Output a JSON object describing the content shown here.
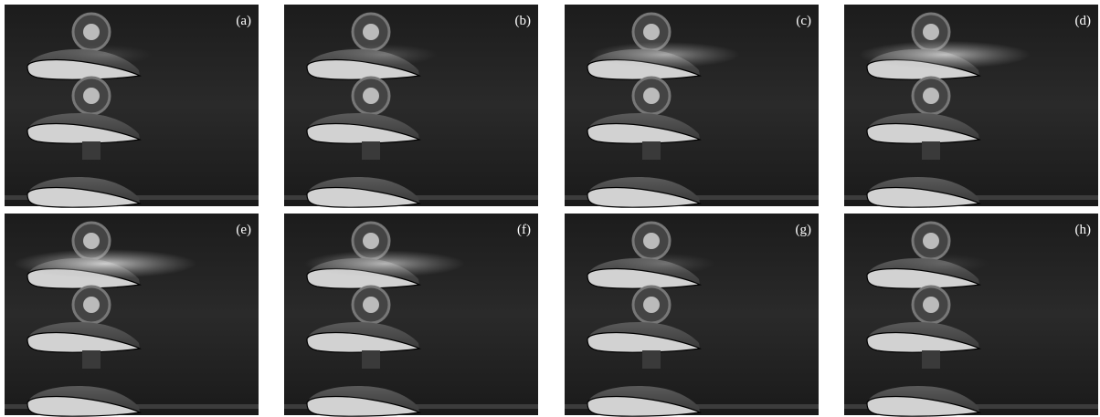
{
  "panels": [
    "(a)",
    "(b)",
    "(c)",
    "(d)",
    "(e)",
    "(f)",
    "(g)",
    "(h)"
  ]
}
